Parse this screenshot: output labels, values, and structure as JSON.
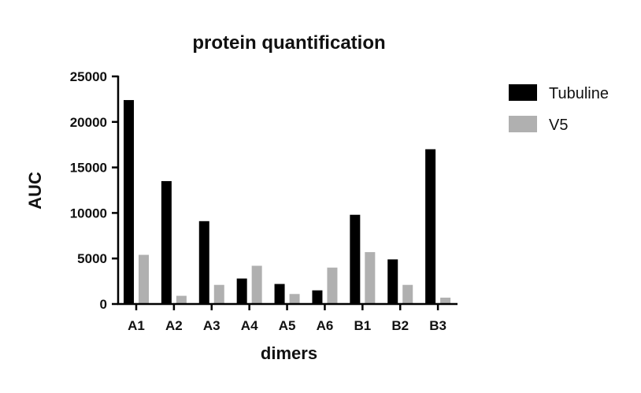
{
  "chart_data": {
    "type": "bar",
    "title": "protein quantification",
    "xlabel": "dimers",
    "ylabel": "AUC",
    "categories": [
      "A1",
      "A2",
      "A3",
      "A4",
      "A5",
      "A6",
      "B1",
      "B2",
      "B3"
    ],
    "series": [
      {
        "name": "Tubuline",
        "color": "#000000",
        "values": [
          22400,
          13500,
          9100,
          2800,
          2200,
          1500,
          9800,
          4900,
          17000
        ]
      },
      {
        "name": "V5",
        "color": "#b0b0b0",
        "values": [
          5400,
          900,
          2100,
          4200,
          1100,
          4000,
          5700,
          2100,
          700
        ]
      }
    ],
    "ylim": [
      0,
      25000
    ],
    "yticks": [
      0,
      5000,
      10000,
      15000,
      20000,
      25000
    ],
    "legend_position": "top-right",
    "grid": false
  }
}
